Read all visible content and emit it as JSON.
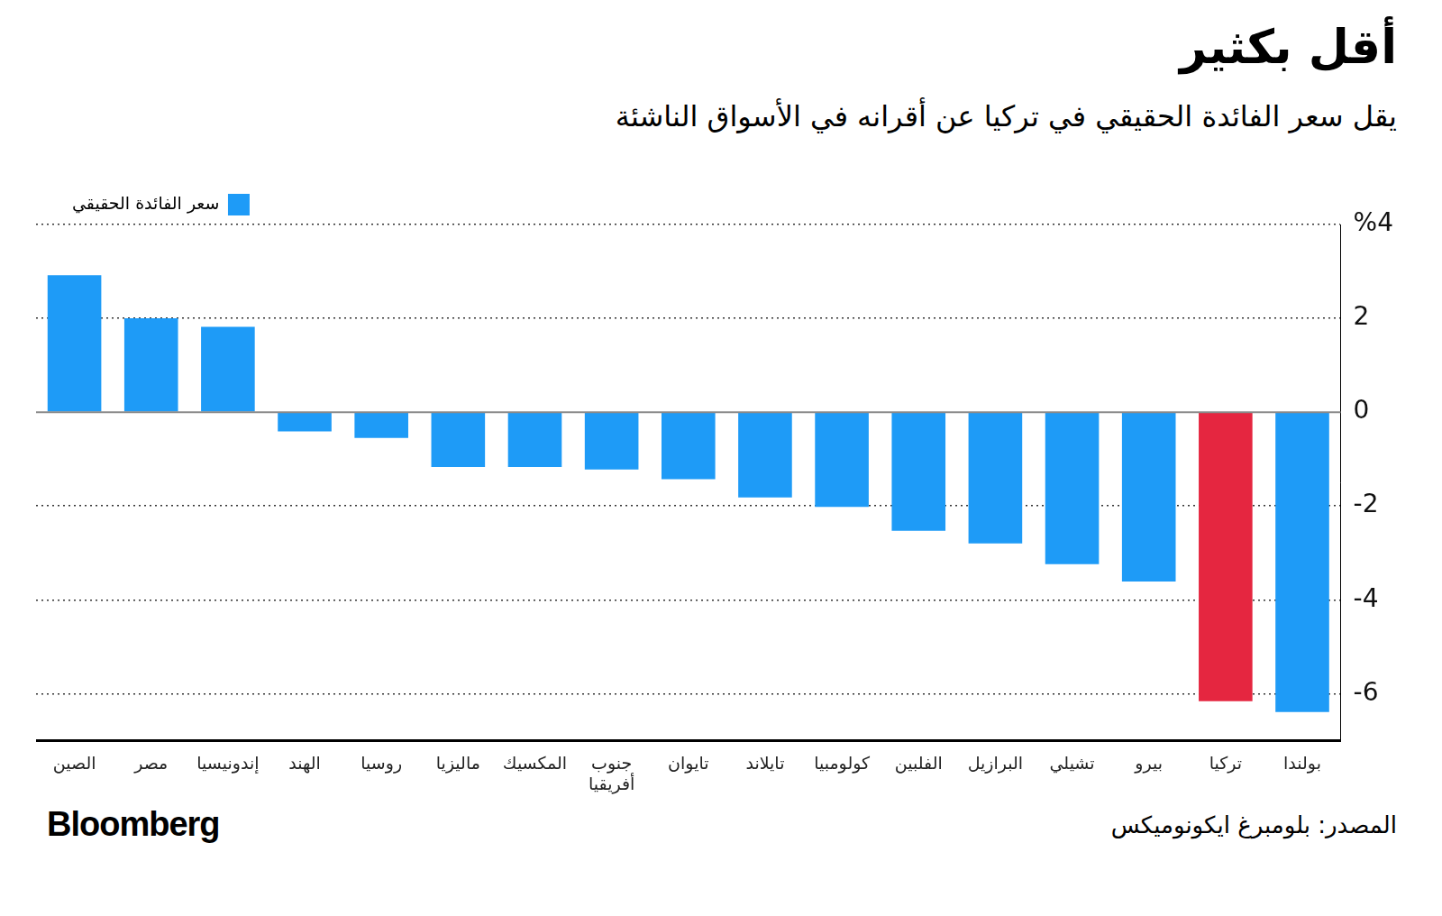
{
  "chart_data": {
    "type": "bar",
    "title": "أقل بكثير",
    "subtitle": "يقل سعر الفائدة الحقيقي في تركيا عن أقرانه في الأسواق الناشئة",
    "source": "المصدر: بلومبرغ ايكونوميكس",
    "brand": "Bloomberg",
    "categories": [
      "الصين",
      "مصر",
      "إندونيسيا",
      "الهند",
      "روسيا",
      "ماليزيا",
      "المكسيك",
      "جنوب أفريقيا",
      "تايوان",
      "تايلاند",
      "كولومبيا",
      "الفلبين",
      "البرازيل",
      "تشيلي",
      "بيرو",
      "تركيا",
      "بولندا"
    ],
    "series": [
      {
        "name": "سعر الفائدة الحقيقي",
        "color": "#1e9bf7",
        "colors": [
          "#1e9bf7",
          "#1e9bf7",
          "#1e9bf7",
          "#1e9bf7",
          "#1e9bf7",
          "#1e9bf7",
          "#1e9bf7",
          "#1e9bf7",
          "#1e9bf7",
          "#1e9bf7",
          "#1e9bf7",
          "#1e9bf7",
          "#1e9bf7",
          "#1e9bf7",
          "#1e9bf7",
          "#e52640",
          "#1e9bf7"
        ],
        "values": [
          2.92,
          2.0,
          1.82,
          -0.41,
          -0.55,
          -1.17,
          -1.17,
          -1.22,
          -1.43,
          -1.82,
          -2.02,
          -2.53,
          -2.8,
          -3.24,
          -3.61,
          -6.16,
          -6.39
        ]
      }
    ],
    "ylim": [
      -7,
      4
    ],
    "yticks": [
      -6,
      -4,
      -2,
      0,
      2,
      {
        "value": 4,
        "label": "%4"
      }
    ],
    "grid": true,
    "legend": "top-right"
  }
}
